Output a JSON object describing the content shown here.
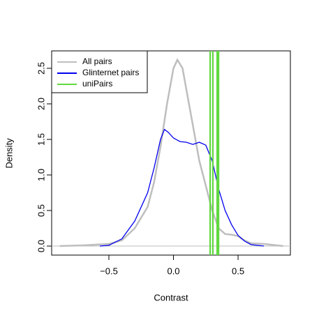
{
  "chart_data": {
    "type": "line",
    "xlabel": "Contrast",
    "ylabel": "Density",
    "xlim": [
      -0.943,
      0.905
    ],
    "ylim": [
      -0.127,
      2.745
    ],
    "xticks": [
      {
        "value": -0.5,
        "label": "−0.5"
      },
      {
        "value": 0,
        "label": "0.0"
      },
      0.5
    ],
    "yticks": [
      {
        "value": 0,
        "label": "0.0"
      },
      0.5,
      {
        "value": 1,
        "label": "1.0"
      },
      1.5,
      {
        "value": 2,
        "label": "2.0"
      },
      2.5
    ],
    "legend": "top-left",
    "series": [
      {
        "name": "All pairs",
        "color": "#bebebe",
        "x": [
          -0.88,
          -0.7,
          -0.6,
          -0.5,
          -0.4,
          -0.3,
          -0.2,
          -0.15,
          -0.1,
          -0.05,
          0.0,
          0.03,
          0.07,
          0.1,
          0.15,
          0.2,
          0.25,
          0.3,
          0.35,
          0.4,
          0.45,
          0.5,
          0.55,
          0.6,
          0.7,
          0.8,
          0.85
        ],
        "values": [
          0.0,
          0.01,
          0.02,
          0.03,
          0.08,
          0.25,
          0.55,
          0.9,
          1.4,
          2.0,
          2.5,
          2.62,
          2.5,
          2.2,
          1.7,
          1.2,
          0.85,
          0.5,
          0.25,
          0.17,
          0.16,
          0.14,
          0.08,
          0.04,
          0.03,
          0.01,
          0.0
        ]
      },
      {
        "name": "Glinternet pairs",
        "color": "#0000ee",
        "x": [
          -0.57,
          -0.5,
          -0.4,
          -0.3,
          -0.2,
          -0.15,
          -0.1,
          -0.07,
          -0.04,
          0.0,
          0.05,
          0.1,
          0.15,
          0.2,
          0.25,
          0.3,
          0.35,
          0.4,
          0.45,
          0.5,
          0.55,
          0.6,
          0.7
        ],
        "values": [
          0.0,
          0.01,
          0.1,
          0.35,
          0.75,
          1.1,
          1.5,
          1.64,
          1.6,
          1.52,
          1.47,
          1.46,
          1.43,
          1.46,
          1.42,
          1.2,
          0.8,
          0.5,
          0.3,
          0.15,
          0.07,
          0.02,
          0.0
        ]
      },
      {
        "name": "uniPairs",
        "color": "#5fd93f",
        "vlines": [
          0.284,
          0.305,
          0.338,
          0.349
        ]
      }
    ]
  }
}
